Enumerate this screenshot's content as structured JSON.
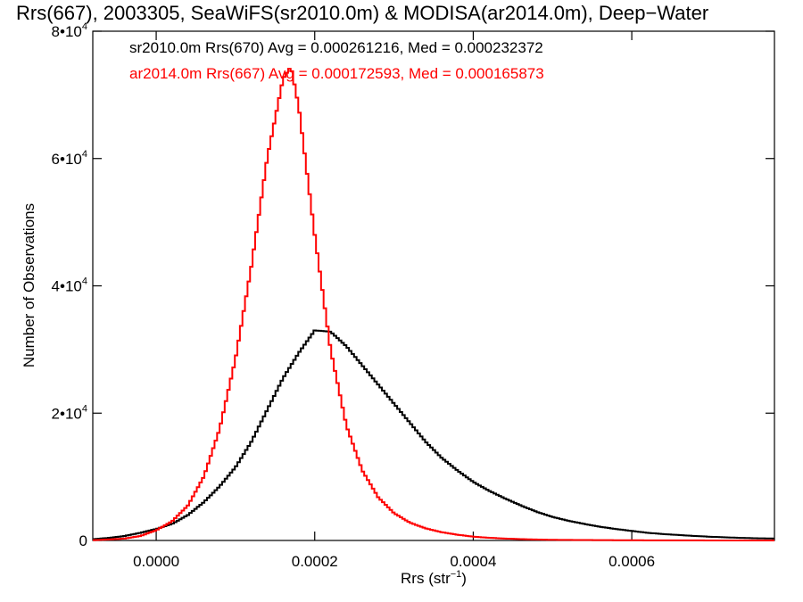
{
  "chart_data": {
    "type": "line",
    "title": "Rrs(667), 2003305, SeaWiFS(sr2010.0m) & MODISA(ar2014.0m), Deep−Water",
    "xlabel": {
      "base": "Rrs (str",
      "sup": "−1",
      "close": ")"
    },
    "ylabel": "Number of Observations",
    "xlim": [
      -8e-05,
      0.00078
    ],
    "ylim": [
      0,
      80000
    ],
    "x_ticks": [
      {
        "value": 0.0,
        "label": "0.0000"
      },
      {
        "value": 0.0002,
        "label": "0.0002"
      },
      {
        "value": 0.0004,
        "label": "0.0004"
      },
      {
        "value": 0.0006,
        "label": "0.0006"
      }
    ],
    "y_ticks": [
      {
        "value": 0,
        "base": "0",
        "exp": ""
      },
      {
        "value": 20000,
        "base": "2•10",
        "exp": "4"
      },
      {
        "value": 40000,
        "base": "4•10",
        "exp": "4"
      },
      {
        "value": 60000,
        "base": "6•10",
        "exp": "4"
      },
      {
        "value": 80000,
        "base": "8•10",
        "exp": "4"
      }
    ],
    "series": [
      {
        "name": "sr2010.0m Rrs(670)",
        "color": "#000000",
        "legend_text": "sr2010.0m Rrs(670) Avg = 0.000261216, Med = 0.000232372",
        "points": [
          [
            -8e-05,
            200
          ],
          [
            -6e-05,
            400
          ],
          [
            -4e-05,
            700
          ],
          [
            -2e-05,
            1200
          ],
          [
            0.0,
            1800
          ],
          [
            2e-05,
            2600
          ],
          [
            4e-05,
            4000
          ],
          [
            6e-05,
            6000
          ],
          [
            8e-05,
            8500
          ],
          [
            0.0001,
            11500
          ],
          [
            0.00012,
            15500
          ],
          [
            0.00014,
            20500
          ],
          [
            0.00016,
            25500
          ],
          [
            0.00018,
            29500
          ],
          [
            0.0002,
            33000
          ],
          [
            0.00022,
            32800
          ],
          [
            0.00024,
            30500
          ],
          [
            0.00026,
            27500
          ],
          [
            0.00028,
            24500
          ],
          [
            0.0003,
            21500
          ],
          [
            0.00032,
            18500
          ],
          [
            0.00034,
            15500
          ],
          [
            0.00036,
            13000
          ],
          [
            0.00038,
            11000
          ],
          [
            0.0004,
            9200
          ],
          [
            0.00042,
            7800
          ],
          [
            0.00044,
            6600
          ],
          [
            0.00046,
            5500
          ],
          [
            0.00048,
            4500
          ],
          [
            0.0005,
            3700
          ],
          [
            0.00052,
            3100
          ],
          [
            0.00054,
            2600
          ],
          [
            0.00056,
            2150
          ],
          [
            0.00058,
            1800
          ],
          [
            0.0006,
            1500
          ],
          [
            0.00062,
            1200
          ],
          [
            0.00064,
            1000
          ],
          [
            0.00066,
            850
          ],
          [
            0.00068,
            700
          ],
          [
            0.0007,
            580
          ],
          [
            0.00072,
            480
          ],
          [
            0.00074,
            400
          ],
          [
            0.00076,
            340
          ],
          [
            0.00078,
            300
          ]
        ]
      },
      {
        "name": "ar2014.0m Rrs(667)",
        "color": "#ff0000",
        "legend_text": "ar2014.0m Rrs(667) Avg = 0.000172593, Med = 0.000165873",
        "points": [
          [
            -8e-05,
            50
          ],
          [
            -6e-05,
            150
          ],
          [
            -4e-05,
            300
          ],
          [
            -2e-05,
            700
          ],
          [
            0.0,
            1600
          ],
          [
            2e-05,
            3000
          ],
          [
            4e-05,
            5500
          ],
          [
            6e-05,
            10000
          ],
          [
            8e-05,
            17500
          ],
          [
            0.0001,
            28500
          ],
          [
            0.00012,
            43000
          ],
          [
            0.00014,
            60000
          ],
          [
            0.00016,
            72500
          ],
          [
            0.00017,
            74500
          ],
          [
            0.00018,
            68000
          ],
          [
            0.0002,
            48000
          ],
          [
            0.00022,
            30000
          ],
          [
            0.00024,
            18000
          ],
          [
            0.00026,
            11000
          ],
          [
            0.00028,
            6800
          ],
          [
            0.0003,
            4300
          ],
          [
            0.00032,
            2800
          ],
          [
            0.00034,
            1900
          ],
          [
            0.00036,
            1300
          ],
          [
            0.00038,
            900
          ],
          [
            0.0004,
            600
          ],
          [
            0.00042,
            420
          ],
          [
            0.00044,
            300
          ],
          [
            0.00046,
            210
          ],
          [
            0.00048,
            150
          ],
          [
            0.0005,
            100
          ],
          [
            0.00055,
            60
          ],
          [
            0.0006,
            30
          ],
          [
            0.00065,
            15
          ],
          [
            0.0007,
            8
          ],
          [
            0.00078,
            0
          ]
        ]
      }
    ],
    "grid": false,
    "legend_position": "top-left"
  }
}
